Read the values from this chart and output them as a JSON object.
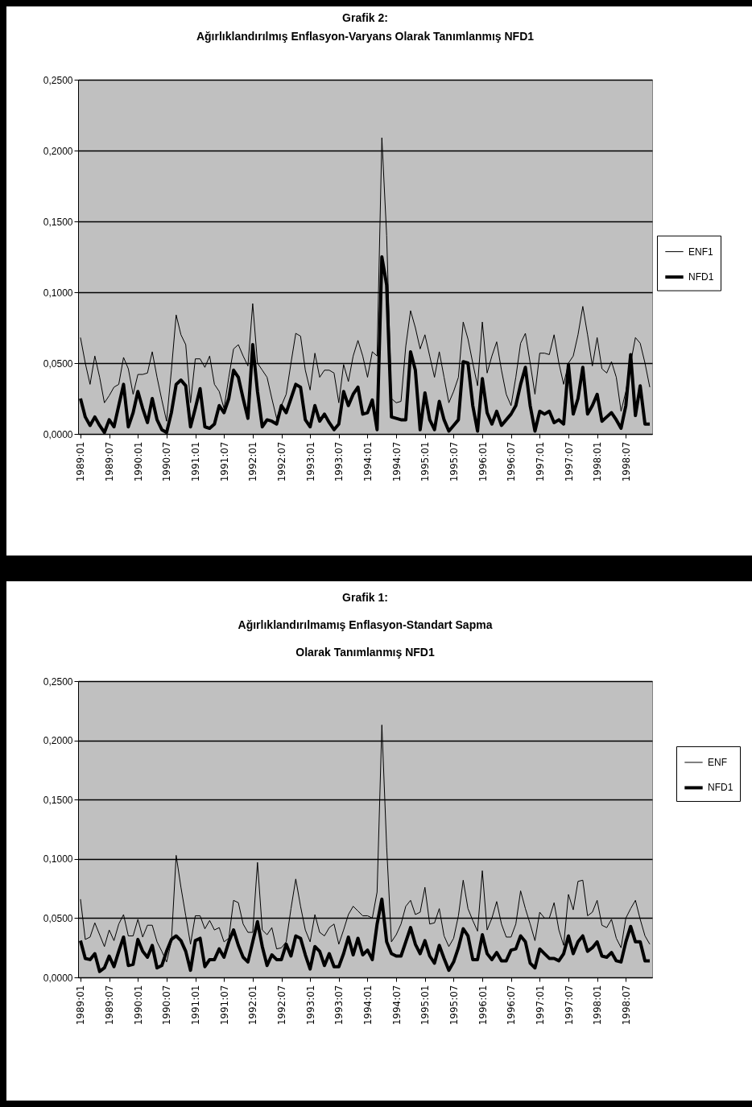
{
  "chart_data": [
    {
      "type": "line",
      "title": "Grafik 2:\nAğırlıklandırılmış Enflasyon-Varyans Olarak Tanımlanmış NFD1",
      "categories": [
        "1989:01",
        null,
        null,
        null,
        null,
        null,
        "1989:07",
        null,
        null,
        null,
        null,
        null,
        "1990:01",
        null,
        null,
        null,
        null,
        null,
        "1990:07",
        null,
        null,
        null,
        null,
        null,
        "1991:01",
        null,
        null,
        null,
        null,
        null,
        "1991:07",
        null,
        null,
        null,
        null,
        null,
        "1992:01",
        null,
        null,
        null,
        null,
        null,
        "1992:07",
        null,
        null,
        null,
        null,
        null,
        "1993:01",
        null,
        null,
        null,
        null,
        null,
        "1993:07",
        null,
        null,
        null,
        null,
        null,
        "1994:01",
        null,
        null,
        null,
        null,
        null,
        "1994:07",
        null,
        null,
        null,
        null,
        null,
        "1995:01",
        null,
        null,
        null,
        null,
        null,
        "1995:07",
        null,
        null,
        null,
        null,
        null,
        "1996:01",
        null,
        null,
        null,
        null,
        null,
        "1996:07",
        null,
        null,
        null,
        null,
        null,
        "1997:01",
        null,
        null,
        null,
        null,
        null,
        "1997:07",
        null,
        null,
        null,
        null,
        null,
        "1998:01",
        null,
        null,
        null,
        null,
        null,
        "1998:07",
        null,
        null,
        null,
        null,
        null
      ],
      "series": [
        {
          "name": "ENF1",
          "color": "#000000",
          "values": [
            0.068,
            0.05,
            0.035,
            0.055,
            0.04,
            0.022,
            0.027,
            0.033,
            0.035,
            0.054,
            0.046,
            0.028,
            0.042,
            0.042,
            0.043,
            0.058,
            0.04,
            0.024,
            0.009,
            0.045,
            0.084,
            0.07,
            0.063,
            0.022,
            0.053,
            0.053,
            0.047,
            0.055,
            0.035,
            0.03,
            0.018,
            0.04,
            0.06,
            0.063,
            0.055,
            0.048,
            0.092,
            0.05,
            0.045,
            0.04,
            0.025,
            0.011,
            0.02,
            0.028,
            0.05,
            0.071,
            0.069,
            0.045,
            0.031,
            0.057,
            0.04,
            0.045,
            0.045,
            0.043,
            0.022,
            0.049,
            0.037,
            0.055,
            0.066,
            0.055,
            0.04,
            0.058,
            0.055,
            0.209,
            0.14,
            0.025,
            0.022,
            0.023,
            0.062,
            0.087,
            0.075,
            0.06,
            0.07,
            0.055,
            0.04,
            0.058,
            0.04,
            0.022,
            0.03,
            0.04,
            0.079,
            0.067,
            0.05,
            0.034,
            0.079,
            0.043,
            0.055,
            0.065,
            0.045,
            0.028,
            0.02,
            0.04,
            0.064,
            0.071,
            0.05,
            0.028,
            0.057,
            0.057,
            0.056,
            0.07,
            0.05,
            0.035,
            0.05,
            0.055,
            0.07,
            0.09,
            0.07,
            0.048,
            0.068,
            0.046,
            0.043,
            0.051,
            0.04,
            0.016,
            0.03,
            0.05,
            0.068,
            0.064,
            0.05,
            0.033
          ]
        },
        {
          "name": "NFD1",
          "color": "#000000",
          "values": [
            0.025,
            0.012,
            0.006,
            0.012,
            0.006,
            0.001,
            0.01,
            0.005,
            0.02,
            0.035,
            0.005,
            0.015,
            0.03,
            0.018,
            0.008,
            0.025,
            0.01,
            0.003,
            0.001,
            0.015,
            0.035,
            0.038,
            0.034,
            0.005,
            0.018,
            0.032,
            0.005,
            0.004,
            0.007,
            0.02,
            0.015,
            0.025,
            0.045,
            0.04,
            0.025,
            0.011,
            0.063,
            0.03,
            0.005,
            0.01,
            0.009,
            0.007,
            0.02,
            0.015,
            0.025,
            0.035,
            0.033,
            0.01,
            0.005,
            0.02,
            0.009,
            0.014,
            0.008,
            0.003,
            0.007,
            0.03,
            0.02,
            0.028,
            0.033,
            0.014,
            0.015,
            0.024,
            0.003,
            0.125,
            0.105,
            0.012,
            0.011,
            0.01,
            0.01,
            0.058,
            0.045,
            0.003,
            0.029,
            0.01,
            0.003,
            0.023,
            0.01,
            0.002,
            0.006,
            0.01,
            0.051,
            0.05,
            0.02,
            0.002,
            0.039,
            0.015,
            0.007,
            0.016,
            0.006,
            0.01,
            0.014,
            0.02,
            0.035,
            0.047,
            0.02,
            0.002,
            0.016,
            0.014,
            0.016,
            0.008,
            0.01,
            0.007,
            0.049,
            0.014,
            0.025,
            0.047,
            0.014,
            0.02,
            0.028,
            0.009,
            0.012,
            0.015,
            0.01,
            0.004,
            0.02,
            0.056,
            0.013,
            0.034,
            0.007,
            0.007
          ]
        }
      ],
      "ylim": [
        0,
        0.25
      ],
      "yticks": [
        {
          "value": 0,
          "label": "0,0000"
        },
        {
          "value": 0.05,
          "label": "0,0500"
        },
        {
          "value": 0.1,
          "label": "0,1000"
        },
        {
          "value": 0.15,
          "label": "0,1500"
        },
        {
          "value": 0.2,
          "label": "0,2000"
        },
        {
          "value": 0.25,
          "label": "0,2500"
        }
      ],
      "grid": "y",
      "legend": "right"
    },
    {
      "type": "line",
      "title": "Grafik 1:\nAğırlıklandırılmamış Enflasyon-Standart Sapma\nOlarak Tanımlanmış NFD1",
      "categories": [
        "1989:01",
        null,
        null,
        null,
        null,
        null,
        "1989:07",
        null,
        null,
        null,
        null,
        null,
        "1990:01",
        null,
        null,
        null,
        null,
        null,
        "1990:07",
        null,
        null,
        null,
        null,
        null,
        "1991:01",
        null,
        null,
        null,
        null,
        null,
        "1991:07",
        null,
        null,
        null,
        null,
        null,
        "1992:01",
        null,
        null,
        null,
        null,
        null,
        "1992:07",
        null,
        null,
        null,
        null,
        null,
        "1993:01",
        null,
        null,
        null,
        null,
        null,
        "1993:07",
        null,
        null,
        null,
        null,
        null,
        "1994:01",
        null,
        null,
        null,
        null,
        null,
        "1994:07",
        null,
        null,
        null,
        null,
        null,
        "1995:01",
        null,
        null,
        null,
        null,
        null,
        "1995:07",
        null,
        null,
        null,
        null,
        null,
        "1996:01",
        null,
        null,
        null,
        null,
        null,
        "1996:07",
        null,
        null,
        null,
        null,
        null,
        "1997:01",
        null,
        null,
        null,
        null,
        null,
        "1997:07",
        null,
        null,
        null,
        null,
        null,
        "1998:01",
        null,
        null,
        null,
        null,
        null,
        "1998:07",
        null,
        null,
        null,
        null,
        null
      ],
      "series": [
        {
          "name": "ENF",
          "color": "#000000",
          "values": [
            0.066,
            0.032,
            0.034,
            0.046,
            0.036,
            0.026,
            0.04,
            0.031,
            0.045,
            0.053,
            0.035,
            0.035,
            0.049,
            0.034,
            0.044,
            0.044,
            0.03,
            0.022,
            0.013,
            0.03,
            0.103,
            0.076,
            0.052,
            0.028,
            0.052,
            0.052,
            0.041,
            0.048,
            0.04,
            0.042,
            0.03,
            0.033,
            0.065,
            0.063,
            0.045,
            0.038,
            0.038,
            0.097,
            0.04,
            0.036,
            0.042,
            0.024,
            0.025,
            0.03,
            0.058,
            0.083,
            0.06,
            0.04,
            0.03,
            0.053,
            0.038,
            0.035,
            0.042,
            0.045,
            0.028,
            0.04,
            0.053,
            0.06,
            0.056,
            0.052,
            0.052,
            0.05,
            0.072,
            0.213,
            0.11,
            0.03,
            0.036,
            0.045,
            0.06,
            0.065,
            0.053,
            0.055,
            0.076,
            0.045,
            0.046,
            0.058,
            0.035,
            0.026,
            0.033,
            0.052,
            0.082,
            0.058,
            0.048,
            0.039,
            0.09,
            0.04,
            0.05,
            0.064,
            0.045,
            0.034,
            0.034,
            0.045,
            0.073,
            0.058,
            0.045,
            0.031,
            0.055,
            0.05,
            0.05,
            0.063,
            0.04,
            0.027,
            0.07,
            0.057,
            0.081,
            0.082,
            0.052,
            0.055,
            0.065,
            0.044,
            0.042,
            0.049,
            0.033,
            0.025,
            0.05,
            0.058,
            0.065,
            0.049,
            0.035,
            0.028
          ]
        },
        {
          "name": "NFD1",
          "color": "#000000",
          "values": [
            0.031,
            0.016,
            0.015,
            0.02,
            0.005,
            0.008,
            0.018,
            0.009,
            0.022,
            0.034,
            0.01,
            0.011,
            0.032,
            0.022,
            0.017,
            0.027,
            0.008,
            0.01,
            0.022,
            0.032,
            0.035,
            0.031,
            0.022,
            0.006,
            0.031,
            0.033,
            0.009,
            0.015,
            0.015,
            0.024,
            0.017,
            0.03,
            0.04,
            0.027,
            0.017,
            0.013,
            0.03,
            0.047,
            0.026,
            0.01,
            0.019,
            0.015,
            0.015,
            0.028,
            0.018,
            0.035,
            0.033,
            0.019,
            0.007,
            0.026,
            0.022,
            0.01,
            0.02,
            0.009,
            0.009,
            0.02,
            0.034,
            0.019,
            0.033,
            0.019,
            0.023,
            0.015,
            0.045,
            0.066,
            0.03,
            0.02,
            0.018,
            0.018,
            0.03,
            0.042,
            0.028,
            0.02,
            0.031,
            0.018,
            0.012,
            0.027,
            0.016,
            0.006,
            0.013,
            0.025,
            0.041,
            0.035,
            0.015,
            0.015,
            0.036,
            0.02,
            0.015,
            0.021,
            0.014,
            0.014,
            0.023,
            0.024,
            0.035,
            0.03,
            0.012,
            0.008,
            0.024,
            0.02,
            0.016,
            0.016,
            0.014,
            0.02,
            0.035,
            0.02,
            0.03,
            0.035,
            0.022,
            0.025,
            0.03,
            0.018,
            0.017,
            0.021,
            0.014,
            0.013,
            0.03,
            0.043,
            0.03,
            0.03,
            0.014,
            0.014
          ]
        }
      ],
      "ylim": [
        0,
        0.25
      ],
      "yticks": [
        {
          "value": 0,
          "label": "0,0000"
        },
        {
          "value": 0.05,
          "label": "0,0500"
        },
        {
          "value": 0.1,
          "label": "0,1000"
        },
        {
          "value": 0.15,
          "label": "0,1500"
        },
        {
          "value": 0.2,
          "label": "0,2000"
        },
        {
          "value": 0.25,
          "label": "0,2500"
        }
      ],
      "grid": "y",
      "legend": "right"
    }
  ]
}
